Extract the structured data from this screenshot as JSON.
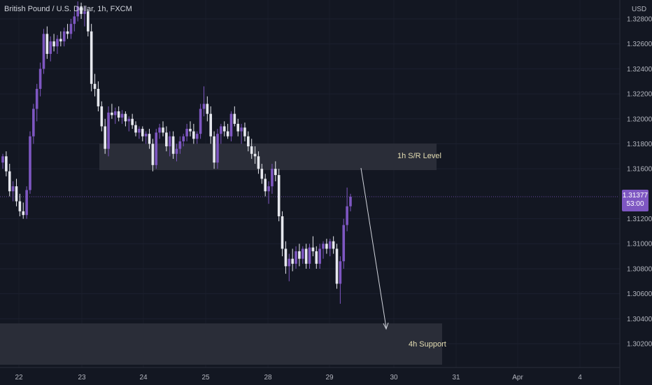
{
  "header": {
    "title": "British Pound / U.S. Dollar, 1h, FXCM",
    "currency": "USD"
  },
  "last_price": {
    "value": "1.31377",
    "countdown": "53:00"
  },
  "zones": {
    "resistance_label": "1h S/R Level",
    "support_label": "4h Support"
  },
  "colors": {
    "background": "#131722",
    "up_candle": "#7e57c2",
    "down_candle": "#e6e8ee",
    "zone_fill": "#2a2d38",
    "zone_text": "#e6dfb4",
    "price_tag": "#7e57c2"
  },
  "chart_data": {
    "type": "candlestick",
    "symbol": "British Pound / U.S. Dollar",
    "timeframe": "1h",
    "source": "FXCM",
    "y_ticks": [
      "1.32800",
      "1.32600",
      "1.32400",
      "1.32200",
      "1.32000",
      "1.31800",
      "1.31600",
      "1.31200",
      "1.31000",
      "1.30800",
      "1.30600",
      "1.30400",
      "1.30200"
    ],
    "x_ticks": [
      "22",
      "23",
      "24",
      "25",
      "28",
      "29",
      "30",
      "31",
      "Apr",
      "4"
    ],
    "ylim": [
      1.301,
      1.3295
    ],
    "zones": [
      {
        "label": "1h S/R Level",
        "from": 1.316,
        "to": 1.3181
      },
      {
        "label": "4h Support",
        "from": 1.3011,
        "to": 1.3044
      }
    ],
    "last_price": 1.31377,
    "projection": "downward arrow from 1h S/R Level toward 4h Support",
    "ohlc": [
      [
        1.3165,
        1.3172,
        1.316,
        1.317
      ],
      [
        1.317,
        1.3174,
        1.3154,
        1.3158
      ],
      [
        1.3158,
        1.3164,
        1.3138,
        1.3142
      ],
      [
        1.3142,
        1.315,
        1.3134,
        1.3146
      ],
      [
        1.3146,
        1.3152,
        1.313,
        1.3134
      ],
      [
        1.3134,
        1.314,
        1.3122,
        1.3126
      ],
      [
        1.3126,
        1.3133,
        1.312,
        1.3123
      ],
      [
        1.3123,
        1.3146,
        1.312,
        1.3143
      ],
      [
        1.3143,
        1.319,
        1.314,
        1.3186
      ],
      [
        1.3186,
        1.3212,
        1.318,
        1.3208
      ],
      [
        1.3208,
        1.3228,
        1.3198,
        1.3224
      ],
      [
        1.3224,
        1.3245,
        1.3218,
        1.324
      ],
      [
        1.324,
        1.3272,
        1.3236,
        1.3268
      ],
      [
        1.3268,
        1.3274,
        1.3248,
        1.3252
      ],
      [
        1.3252,
        1.3266,
        1.3246,
        1.3262
      ],
      [
        1.3262,
        1.3268,
        1.3254,
        1.3258
      ],
      [
        1.3258,
        1.3267,
        1.3252,
        1.3264
      ],
      [
        1.3264,
        1.327,
        1.3258,
        1.3262
      ],
      [
        1.3262,
        1.3273,
        1.3258,
        1.327
      ],
      [
        1.327,
        1.3276,
        1.3264,
        1.3268
      ],
      [
        1.3268,
        1.328,
        1.3264,
        1.3276
      ],
      [
        1.3276,
        1.3286,
        1.327,
        1.3282
      ],
      [
        1.3282,
        1.3294,
        1.3278,
        1.329
      ],
      [
        1.329,
        1.3293,
        1.328,
        1.3284
      ],
      [
        1.3284,
        1.329,
        1.3274,
        1.3286
      ],
      [
        1.3286,
        1.3288,
        1.3266,
        1.327
      ],
      [
        1.327,
        1.3276,
        1.3222,
        1.3228
      ],
      [
        1.3228,
        1.3236,
        1.3218,
        1.3224
      ],
      [
        1.3224,
        1.323,
        1.3206,
        1.321
      ],
      [
        1.321,
        1.3214,
        1.319,
        1.3194
      ],
      [
        1.3194,
        1.32,
        1.3172,
        1.3176
      ],
      [
        1.3176,
        1.321,
        1.317,
        1.3205
      ],
      [
        1.3205,
        1.3212,
        1.32,
        1.3203
      ],
      [
        1.3203,
        1.3209,
        1.3196,
        1.3206
      ],
      [
        1.3206,
        1.321,
        1.3198,
        1.3201
      ],
      [
        1.3201,
        1.3207,
        1.3196,
        1.3204
      ],
      [
        1.3204,
        1.3206,
        1.3194,
        1.3198
      ],
      [
        1.3198,
        1.3202,
        1.319,
        1.32
      ],
      [
        1.32,
        1.3204,
        1.3192,
        1.3195
      ],
      [
        1.3195,
        1.3198,
        1.3186,
        1.3189
      ],
      [
        1.3189,
        1.3194,
        1.3184,
        1.3192
      ],
      [
        1.3192,
        1.3194,
        1.3182,
        1.3186
      ],
      [
        1.3186,
        1.319,
        1.318,
        1.3188
      ],
      [
        1.3188,
        1.3192,
        1.3176,
        1.318
      ],
      [
        1.318,
        1.3184,
        1.3158,
        1.3163
      ],
      [
        1.3163,
        1.3192,
        1.316,
        1.3189
      ],
      [
        1.3189,
        1.3196,
        1.3184,
        1.3193
      ],
      [
        1.3193,
        1.3198,
        1.3186,
        1.3189
      ],
      [
        1.3189,
        1.3194,
        1.3174,
        1.3178
      ],
      [
        1.3178,
        1.319,
        1.317,
        1.3186
      ],
      [
        1.3186,
        1.319,
        1.3168,
        1.3172
      ],
      [
        1.3172,
        1.318,
        1.3166,
        1.3176
      ],
      [
        1.3176,
        1.3186,
        1.3172,
        1.3182
      ],
      [
        1.3182,
        1.3188,
        1.3178,
        1.3186
      ],
      [
        1.3186,
        1.3196,
        1.3182,
        1.3192
      ],
      [
        1.3192,
        1.3198,
        1.3186,
        1.319
      ],
      [
        1.319,
        1.3196,
        1.318,
        1.3184
      ],
      [
        1.3184,
        1.319,
        1.318,
        1.3188
      ],
      [
        1.3188,
        1.3212,
        1.3184,
        1.3208
      ],
      [
        1.3208,
        1.3226,
        1.3202,
        1.3212
      ],
      [
        1.3212,
        1.3218,
        1.3198,
        1.3204
      ],
      [
        1.3204,
        1.321,
        1.318,
        1.3186
      ],
      [
        1.3186,
        1.319,
        1.316,
        1.3165
      ],
      [
        1.3165,
        1.3192,
        1.316,
        1.3188
      ],
      [
        1.3188,
        1.3196,
        1.318,
        1.3194
      ],
      [
        1.3194,
        1.3198,
        1.3186,
        1.319
      ],
      [
        1.319,
        1.3196,
        1.3184,
        1.3186
      ],
      [
        1.3186,
        1.3206,
        1.3182,
        1.3204
      ],
      [
        1.3204,
        1.321,
        1.3194,
        1.3196
      ],
      [
        1.3196,
        1.32,
        1.3186,
        1.319
      ],
      [
        1.319,
        1.3196,
        1.318,
        1.3193
      ],
      [
        1.3193,
        1.3197,
        1.3182,
        1.3186
      ],
      [
        1.3186,
        1.319,
        1.3174,
        1.3178
      ],
      [
        1.3178,
        1.3184,
        1.3168,
        1.3172
      ],
      [
        1.3172,
        1.3178,
        1.3164,
        1.317
      ],
      [
        1.317,
        1.3174,
        1.3156,
        1.316
      ],
      [
        1.316,
        1.3164,
        1.3148,
        1.3152
      ],
      [
        1.3152,
        1.3156,
        1.3138,
        1.3142
      ],
      [
        1.3142,
        1.315,
        1.3132,
        1.3146
      ],
      [
        1.3146,
        1.3164,
        1.314,
        1.316
      ],
      [
        1.316,
        1.3166,
        1.315,
        1.3155
      ],
      [
        1.3155,
        1.316,
        1.3118,
        1.3122
      ],
      [
        1.3122,
        1.3126,
        1.309,
        1.3096
      ],
      [
        1.3096,
        1.3102,
        1.3076,
        1.3082
      ],
      [
        1.3082,
        1.3092,
        1.307,
        1.3088
      ],
      [
        1.3088,
        1.3096,
        1.3078,
        1.3084
      ],
      [
        1.3084,
        1.3098,
        1.308,
        1.3094
      ],
      [
        1.3094,
        1.31,
        1.3082,
        1.3088
      ],
      [
        1.3088,
        1.3098,
        1.3084,
        1.3096
      ],
      [
        1.3096,
        1.31,
        1.308,
        1.3084
      ],
      [
        1.3084,
        1.31,
        1.308,
        1.3097
      ],
      [
        1.3097,
        1.3106,
        1.309,
        1.3094
      ],
      [
        1.3094,
        1.3098,
        1.308,
        1.3084
      ],
      [
        1.3084,
        1.31,
        1.308,
        1.3096
      ],
      [
        1.3096,
        1.3102,
        1.3088,
        1.31
      ],
      [
        1.31,
        1.3104,
        1.3092,
        1.3096
      ],
      [
        1.3096,
        1.3104,
        1.309,
        1.3102
      ],
      [
        1.3102,
        1.3106,
        1.3092,
        1.3096
      ],
      [
        1.3096,
        1.31,
        1.3064,
        1.3068
      ],
      [
        1.3068,
        1.309,
        1.3052,
        1.3086
      ],
      [
        1.3086,
        1.312,
        1.308,
        1.3115
      ],
      [
        1.3115,
        1.3145,
        1.311,
        1.313
      ],
      [
        1.313,
        1.314,
        1.3126,
        1.31377
      ]
    ]
  }
}
